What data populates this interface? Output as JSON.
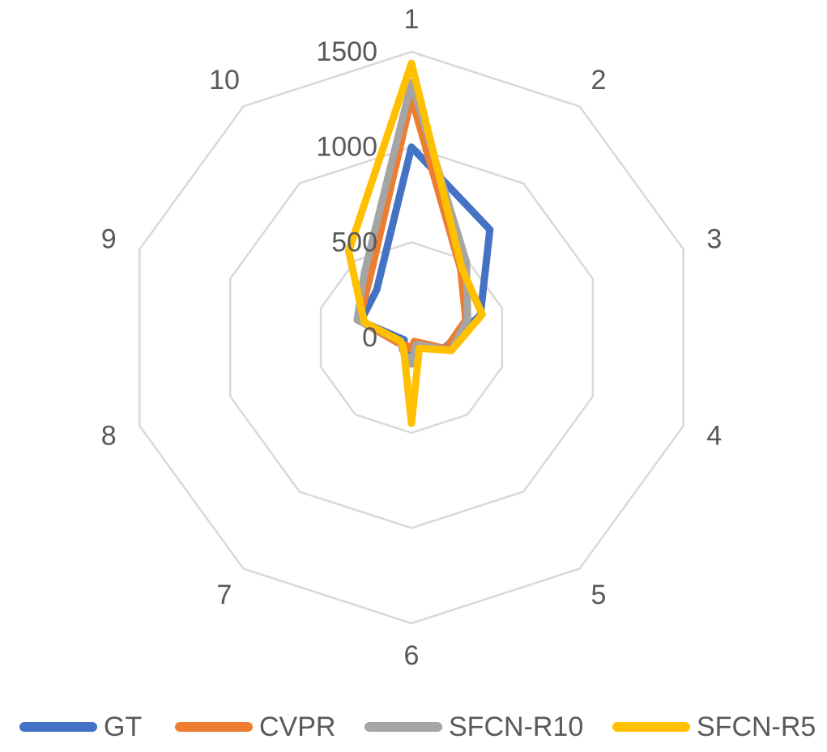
{
  "chart_data": {
    "type": "radar",
    "categories": [
      "1",
      "2",
      "3",
      "4",
      "5",
      "6",
      "7",
      "8",
      "9",
      "10"
    ],
    "rlim": [
      0,
      1500
    ],
    "ticks": [
      0,
      500,
      1000,
      1500
    ],
    "tick_labels": [
      "0",
      "500",
      "1000",
      "1500"
    ],
    "grid": true,
    "legend_position": "bottom",
    "series": [
      {
        "name": "GT",
        "color": "#4472C4",
        "values": [
          1000,
          700,
          380,
          180,
          40,
          70,
          70,
          40,
          280,
          310
        ]
      },
      {
        "name": "CVPR",
        "color": "#ED7D31",
        "values": [
          1260,
          440,
          300,
          190,
          25,
          60,
          50,
          80,
          290,
          375
        ]
      },
      {
        "name": "SFCN-R10",
        "color": "#A5A5A5",
        "values": [
          1340,
          490,
          310,
          220,
          45,
          140,
          80,
          60,
          300,
          420
        ]
      },
      {
        "name": "SFCN-R5",
        "color": "#FFC000",
        "values": [
          1440,
          450,
          390,
          220,
          70,
          450,
          70,
          60,
          260,
          560
        ]
      }
    ]
  }
}
